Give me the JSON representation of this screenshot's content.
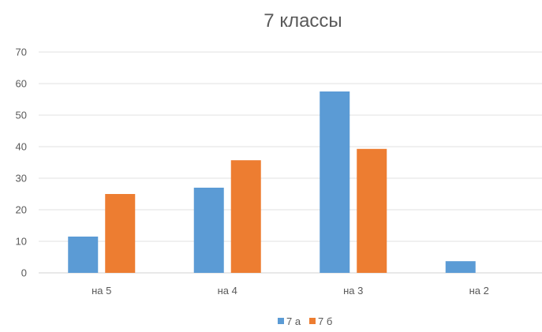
{
  "chart_data": {
    "type": "bar",
    "title": "7 классы",
    "categories": [
      "на 5",
      "на 4",
      "на 3",
      "на 2"
    ],
    "series": [
      {
        "name": "7 а",
        "values": [
          11.5,
          27,
          57.5,
          3.7
        ],
        "color": "#5B9BD5"
      },
      {
        "name": "7 б",
        "values": [
          25,
          35.7,
          39.3,
          0
        ],
        "color": "#ED7D31"
      }
    ],
    "ylim": [
      0,
      70
    ],
    "yticks": [
      0,
      10,
      20,
      30,
      40,
      50,
      60,
      70
    ],
    "grid": true,
    "legend_position": "bottom"
  }
}
